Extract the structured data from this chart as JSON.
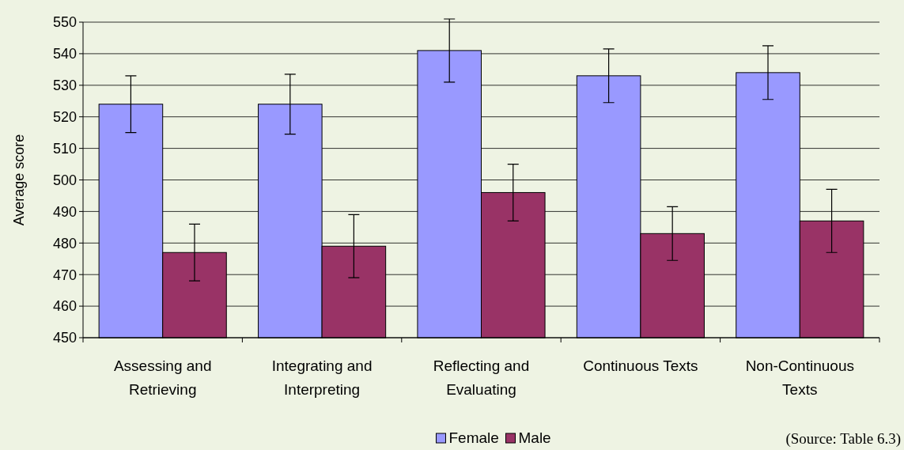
{
  "chart_data": {
    "type": "bar",
    "ylabel": "Average score",
    "categories": [
      "Assessing and Retrieving",
      "Integrating and Interpreting",
      "Reflecting and Evaluating",
      "Continuous Texts",
      "Non-Continuous Texts"
    ],
    "series": [
      {
        "name": "Female",
        "color": "#9999ff",
        "values": [
          524,
          524,
          541,
          533,
          534
        ],
        "errors": [
          9,
          9.5,
          10,
          8.5,
          8.5
        ]
      },
      {
        "name": "Male",
        "color": "#993366",
        "values": [
          477,
          479,
          496,
          483,
          487
        ],
        "errors": [
          9,
          10,
          9,
          8.5,
          10
        ]
      }
    ],
    "ylim": [
      450,
      550
    ],
    "yticks": [
      450,
      460,
      470,
      480,
      490,
      500,
      510,
      520,
      530,
      540,
      550
    ],
    "grid": "y",
    "legend": "bottom",
    "annotations": [
      "(Source: Table 6.3)"
    ]
  }
}
